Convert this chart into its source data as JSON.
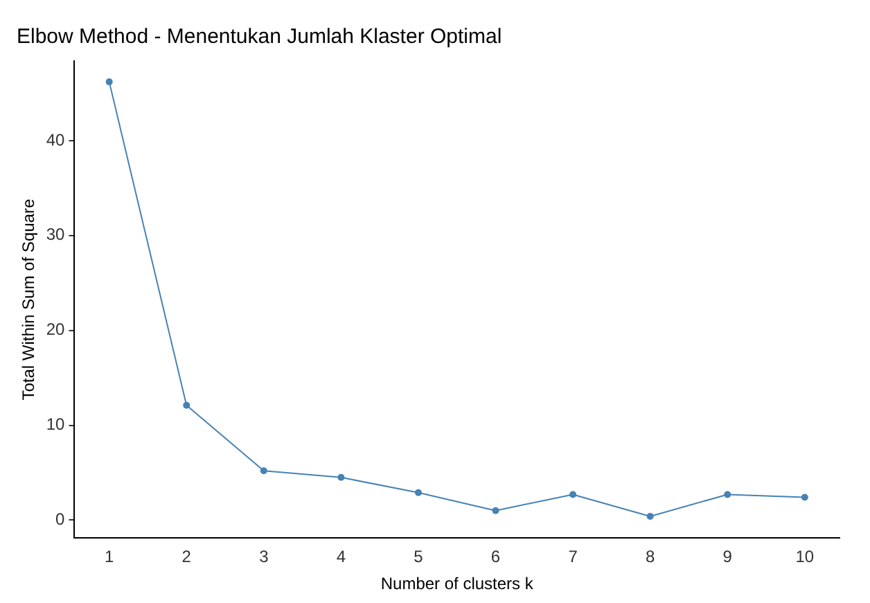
{
  "chart_data": {
    "type": "line",
    "title": "Elbow Method - Menentukan Jumlah Klaster Optimal",
    "xlabel": "Number of clusters k",
    "ylabel": "Total Within Sum of Square",
    "x": [
      1,
      2,
      3,
      4,
      5,
      6,
      7,
      8,
      9,
      10
    ],
    "series": [
      {
        "color": "#4682b4",
        "values": [
          46.2,
          12.1,
          5.2,
          4.5,
          2.9,
          1.0,
          2.7,
          0.4,
          2.7,
          2.4
        ]
      }
    ],
    "xlim": [
      0.55,
      10.45
    ],
    "xticks": [
      1,
      2,
      3,
      4,
      5,
      6,
      7,
      8,
      9,
      10
    ],
    "ylim": [
      -1.9,
      48.4
    ],
    "yticks": [
      0,
      10,
      20,
      30,
      40
    ],
    "grid": false,
    "legend": false,
    "marker": "circle",
    "line_style": "solid"
  }
}
